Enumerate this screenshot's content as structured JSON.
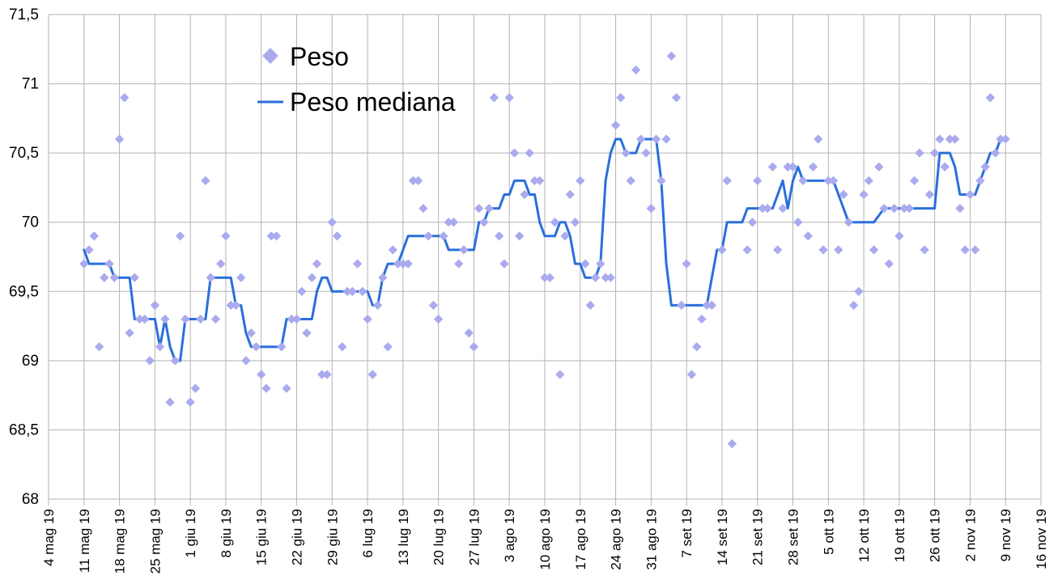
{
  "chart_data": {
    "type": "line",
    "title": "",
    "xlabel": "",
    "ylabel": "",
    "ylim": [
      68,
      71.5
    ],
    "xlim": [
      "2019-05-04",
      "2019-11-16"
    ],
    "yticks": [
      "68",
      "68,5",
      "69",
      "69,5",
      "70",
      "70,5",
      "71",
      "71,5"
    ],
    "xticks": [
      "4 mag 19",
      "11 mag 19",
      "18 mag 19",
      "25 mag 19",
      "1 giu 19",
      "8 giu 19",
      "15 giu 19",
      "22 giu 19",
      "29 giu 19",
      "6 lug 19",
      "13 lug 19",
      "20 lug 19",
      "27 lug 19",
      "3 ago 19",
      "10 ago 19",
      "17 ago 19",
      "24 ago 19",
      "31 ago 19",
      "7 set 19",
      "14 set 19",
      "21 set 19",
      "28 set 19",
      "5 ott 19",
      "12 ott 19",
      "19 ott 19",
      "26 ott 19",
      "2 nov 19",
      "9 nov 19",
      "16 nov 19"
    ],
    "grid": true,
    "legend_position": "top-center",
    "colors": {
      "peso": "#aaaaee",
      "mediana": "#2a6fdb",
      "grid": "#b3b3b3"
    },
    "series": [
      {
        "name": "Peso",
        "kind": "scatter",
        "x": [
          "2019-05-11",
          "2019-05-12",
          "2019-05-13",
          "2019-05-14",
          "2019-05-15",
          "2019-05-16",
          "2019-05-17",
          "2019-05-18",
          "2019-05-19",
          "2019-05-20",
          "2019-05-21",
          "2019-05-22",
          "2019-05-23",
          "2019-05-24",
          "2019-05-25",
          "2019-05-26",
          "2019-05-27",
          "2019-05-28",
          "2019-05-29",
          "2019-05-30",
          "2019-05-31",
          "2019-06-01",
          "2019-06-02",
          "2019-06-03",
          "2019-06-04",
          "2019-06-05",
          "2019-06-06",
          "2019-06-07",
          "2019-06-08",
          "2019-06-09",
          "2019-06-10",
          "2019-06-11",
          "2019-06-12",
          "2019-06-13",
          "2019-06-14",
          "2019-06-15",
          "2019-06-16",
          "2019-06-17",
          "2019-06-18",
          "2019-06-19",
          "2019-06-20",
          "2019-06-21",
          "2019-06-22",
          "2019-06-23",
          "2019-06-24",
          "2019-06-25",
          "2019-06-26",
          "2019-06-27",
          "2019-06-28",
          "2019-06-29",
          "2019-06-30",
          "2019-07-01",
          "2019-07-02",
          "2019-07-03",
          "2019-07-04",
          "2019-07-05",
          "2019-07-06",
          "2019-07-07",
          "2019-07-08",
          "2019-07-09",
          "2019-07-10",
          "2019-07-11",
          "2019-07-12",
          "2019-07-13",
          "2019-07-14",
          "2019-07-15",
          "2019-07-16",
          "2019-07-17",
          "2019-07-18",
          "2019-07-19",
          "2019-07-20",
          "2019-07-21",
          "2019-07-22",
          "2019-07-23",
          "2019-07-24",
          "2019-07-25",
          "2019-07-26",
          "2019-07-27",
          "2019-07-28",
          "2019-07-29",
          "2019-07-30",
          "2019-07-31",
          "2019-08-01",
          "2019-08-02",
          "2019-08-03",
          "2019-08-04",
          "2019-08-05",
          "2019-08-06",
          "2019-08-07",
          "2019-08-08",
          "2019-08-09",
          "2019-08-10",
          "2019-08-11",
          "2019-08-12",
          "2019-08-13",
          "2019-08-14",
          "2019-08-15",
          "2019-08-16",
          "2019-08-17",
          "2019-08-18",
          "2019-08-19",
          "2019-08-20",
          "2019-08-21",
          "2019-08-22",
          "2019-08-23",
          "2019-08-24",
          "2019-08-25",
          "2019-08-26",
          "2019-08-27",
          "2019-08-28",
          "2019-08-29",
          "2019-08-30",
          "2019-08-31",
          "2019-09-01",
          "2019-09-02",
          "2019-09-03",
          "2019-09-04",
          "2019-09-05",
          "2019-09-06",
          "2019-09-07",
          "2019-09-08",
          "2019-09-09",
          "2019-09-10",
          "2019-09-11",
          "2019-09-12",
          "2019-09-14",
          "2019-09-15",
          "2019-09-16",
          "2019-09-19",
          "2019-09-20",
          "2019-09-21",
          "2019-09-22",
          "2019-09-23",
          "2019-09-24",
          "2019-09-25",
          "2019-09-26",
          "2019-09-27",
          "2019-09-28",
          "2019-09-29",
          "2019-09-30",
          "2019-10-01",
          "2019-10-02",
          "2019-10-03",
          "2019-10-04",
          "2019-10-05",
          "2019-10-06",
          "2019-10-07",
          "2019-10-08",
          "2019-10-09",
          "2019-10-10",
          "2019-10-11",
          "2019-10-12",
          "2019-10-13",
          "2019-10-14",
          "2019-10-15",
          "2019-10-16",
          "2019-10-17",
          "2019-10-18",
          "2019-10-19",
          "2019-10-20",
          "2019-10-21",
          "2019-10-22",
          "2019-10-23",
          "2019-10-24",
          "2019-10-25",
          "2019-10-26",
          "2019-10-27",
          "2019-10-28",
          "2019-10-29",
          "2019-10-30",
          "2019-10-31",
          "2019-11-01",
          "2019-11-02",
          "2019-11-03",
          "2019-11-04",
          "2019-11-05",
          "2019-11-06",
          "2019-11-07",
          "2019-11-08",
          "2019-11-09"
        ],
        "y": [
          69.7,
          69.8,
          69.9,
          69.1,
          69.6,
          69.7,
          69.6,
          70.6,
          70.9,
          69.2,
          69.6,
          69.3,
          69.3,
          69.0,
          69.4,
          69.1,
          69.3,
          68.7,
          69.0,
          69.9,
          69.3,
          68.7,
          68.8,
          69.3,
          70.3,
          69.6,
          69.3,
          69.7,
          69.9,
          69.4,
          69.4,
          69.6,
          69.0,
          69.2,
          69.1,
          68.9,
          68.8,
          69.9,
          69.9,
          69.1,
          68.8,
          69.3,
          69.3,
          69.5,
          69.2,
          69.6,
          69.7,
          68.9,
          68.9,
          70.0,
          69.9,
          69.1,
          69.5,
          69.5,
          69.7,
          69.5,
          69.3,
          68.9,
          69.4,
          69.6,
          69.1,
          69.8,
          69.7,
          69.7,
          69.7,
          70.3,
          70.3,
          70.1,
          69.9,
          69.4,
          69.3,
          69.9,
          70.0,
          70.0,
          69.7,
          69.8,
          69.2,
          69.1,
          70.1,
          70.0,
          70.1,
          70.9,
          69.9,
          69.7,
          70.9,
          70.5,
          69.9,
          70.2,
          70.5,
          70.3,
          70.3,
          69.6,
          69.6,
          70.0,
          68.9,
          69.9,
          70.2,
          70.0,
          70.3,
          69.7,
          69.4,
          69.6,
          69.7,
          69.6,
          69.6,
          70.7,
          70.9,
          70.5,
          70.3,
          71.1,
          70.6,
          70.5,
          70.1,
          70.6,
          70.3,
          70.6,
          71.2,
          70.9,
          69.4,
          69.7,
          68.9,
          69.1,
          69.3,
          69.4,
          69.4,
          69.8,
          70.3,
          68.4,
          69.8,
          70.0,
          70.3,
          70.1,
          70.1,
          70.4,
          69.8,
          70.1,
          70.4,
          70.4,
          70.0,
          70.3,
          69.9,
          70.4,
          70.6,
          69.8,
          70.3,
          70.3,
          69.8,
          70.2,
          70.0,
          69.4,
          69.5,
          70.2,
          70.3,
          69.8,
          70.4,
          70.1,
          69.7,
          70.1,
          69.9,
          70.1,
          70.1,
          70.3,
          70.5,
          69.8,
          70.2,
          70.5,
          70.6,
          70.4,
          70.6,
          70.6,
          70.1,
          69.8,
          70.2,
          69.8,
          70.3,
          70.4,
          70.9,
          70.5,
          70.6,
          70.6
        ]
      },
      {
        "name": "Peso mediana",
        "kind": "line",
        "x": [
          "2019-05-11",
          "2019-05-12",
          "2019-05-13",
          "2019-05-15",
          "2019-05-16",
          "2019-05-17",
          "2019-05-19",
          "2019-05-20",
          "2019-05-21",
          "2019-05-22",
          "2019-05-24",
          "2019-05-25",
          "2019-05-26",
          "2019-05-27",
          "2019-05-28",
          "2019-05-29",
          "2019-05-30",
          "2019-05-31",
          "2019-06-01",
          "2019-06-02",
          "2019-06-03",
          "2019-06-04",
          "2019-06-05",
          "2019-06-06",
          "2019-06-07",
          "2019-06-09",
          "2019-06-10",
          "2019-06-11",
          "2019-06-12",
          "2019-06-13",
          "2019-06-14",
          "2019-06-15",
          "2019-06-17",
          "2019-06-18",
          "2019-06-19",
          "2019-06-20",
          "2019-06-21",
          "2019-06-22",
          "2019-06-23",
          "2019-06-24",
          "2019-06-25",
          "2019-06-26",
          "2019-06-27",
          "2019-06-28",
          "2019-06-29",
          "2019-06-30",
          "2019-07-02",
          "2019-07-04",
          "2019-07-06",
          "2019-07-07",
          "2019-07-08",
          "2019-07-09",
          "2019-07-10",
          "2019-07-11",
          "2019-07-12",
          "2019-07-13",
          "2019-07-14",
          "2019-07-15",
          "2019-07-16",
          "2019-07-17",
          "2019-07-18",
          "2019-07-19",
          "2019-07-20",
          "2019-07-21",
          "2019-07-22",
          "2019-07-23",
          "2019-07-24",
          "2019-07-25",
          "2019-07-26",
          "2019-07-27",
          "2019-07-28",
          "2019-07-29",
          "2019-07-30",
          "2019-07-31",
          "2019-08-01",
          "2019-08-02",
          "2019-08-03",
          "2019-08-04",
          "2019-08-05",
          "2019-08-06",
          "2019-08-07",
          "2019-08-08",
          "2019-08-09",
          "2019-08-10",
          "2019-08-11",
          "2019-08-12",
          "2019-08-13",
          "2019-08-14",
          "2019-08-15",
          "2019-08-16",
          "2019-08-17",
          "2019-08-18",
          "2019-08-19",
          "2019-08-20",
          "2019-08-21",
          "2019-08-22",
          "2019-08-23",
          "2019-08-24",
          "2019-08-25",
          "2019-08-26",
          "2019-08-27",
          "2019-08-28",
          "2019-08-29",
          "2019-08-30",
          "2019-08-31",
          "2019-09-01",
          "2019-09-02",
          "2019-09-03",
          "2019-09-04",
          "2019-09-05",
          "2019-09-06",
          "2019-09-07",
          "2019-09-09",
          "2019-09-11",
          "2019-09-13",
          "2019-09-14",
          "2019-09-15",
          "2019-09-16",
          "2019-09-17",
          "2019-09-18",
          "2019-09-19",
          "2019-09-20",
          "2019-09-21",
          "2019-09-22",
          "2019-09-24",
          "2019-09-26",
          "2019-09-27",
          "2019-09-28",
          "2019-09-29",
          "2019-09-30",
          "2019-10-01",
          "2019-10-02",
          "2019-10-03",
          "2019-10-04",
          "2019-10-05",
          "2019-10-06",
          "2019-10-07",
          "2019-10-09",
          "2019-10-11",
          "2019-10-12",
          "2019-10-13",
          "2019-10-14",
          "2019-10-16",
          "2019-10-18",
          "2019-10-20",
          "2019-10-22",
          "2019-10-26",
          "2019-10-27",
          "2019-10-28",
          "2019-10-29",
          "2019-10-30",
          "2019-10-31",
          "2019-11-01",
          "2019-11-02",
          "2019-11-03",
          "2019-11-04",
          "2019-11-05",
          "2019-11-06",
          "2019-11-07",
          "2019-11-08",
          "2019-11-09"
        ],
        "y": [
          69.8,
          69.7,
          69.7,
          69.7,
          69.7,
          69.6,
          69.6,
          69.6,
          69.3,
          69.3,
          69.3,
          69.3,
          69.1,
          69.3,
          69.1,
          69.0,
          69.0,
          69.3,
          69.3,
          69.3,
          69.3,
          69.3,
          69.6,
          69.6,
          69.6,
          69.6,
          69.4,
          69.4,
          69.2,
          69.1,
          69.1,
          69.1,
          69.1,
          69.1,
          69.1,
          69.3,
          69.3,
          69.3,
          69.3,
          69.3,
          69.3,
          69.5,
          69.6,
          69.6,
          69.5,
          69.5,
          69.5,
          69.5,
          69.5,
          69.4,
          69.4,
          69.6,
          69.7,
          69.7,
          69.7,
          69.8,
          69.9,
          69.9,
          69.9,
          69.9,
          69.9,
          69.9,
          69.9,
          69.9,
          69.8,
          69.8,
          69.8,
          69.8,
          69.8,
          69.8,
          70.0,
          70.0,
          70.1,
          70.1,
          70.1,
          70.2,
          70.2,
          70.3,
          70.3,
          70.3,
          70.2,
          70.2,
          70.0,
          69.9,
          69.9,
          69.9,
          70.0,
          70.0,
          69.9,
          69.7,
          69.7,
          69.6,
          69.6,
          69.6,
          69.7,
          70.3,
          70.5,
          70.6,
          70.6,
          70.5,
          70.5,
          70.5,
          70.6,
          70.6,
          70.6,
          70.6,
          70.3,
          69.7,
          69.4,
          69.4,
          69.4,
          69.4,
          69.4,
          69.4,
          69.8,
          69.8,
          70.0,
          70.0,
          70.0,
          70.0,
          70.1,
          70.1,
          70.1,
          70.1,
          70.1,
          70.3,
          70.1,
          70.3,
          70.4,
          70.3,
          70.3,
          70.3,
          70.3,
          70.3,
          70.3,
          70.3,
          70.2,
          70.0,
          70.0,
          70.0,
          70.0,
          70.0,
          70.1,
          70.1,
          70.1,
          70.1,
          70.1,
          70.5,
          70.5,
          70.5,
          70.4,
          70.2,
          70.2,
          70.2,
          70.2,
          70.3,
          70.4,
          70.5,
          70.5,
          70.6,
          70.6
        ]
      }
    ]
  }
}
